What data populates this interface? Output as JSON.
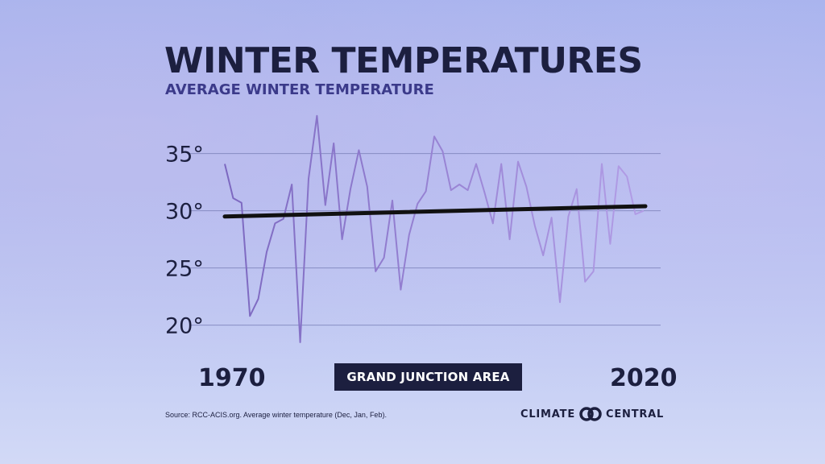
{
  "header": {
    "title": "WINTER TEMPERATURES",
    "subtitle": "AVERAGE WINTER TEMPERATURE"
  },
  "region_label": "GRAND JUNCTION AREA",
  "x_start_label": "1970",
  "x_end_label": "2020",
  "source": "Source: RCC-ACIS.org. Average winter temperature (Dec, Jan, Feb).",
  "logo": {
    "left": "CLIMATE",
    "right": "CENTRAL",
    "icon": "infinity-rings-icon"
  },
  "colors": {
    "text_dark": "#1c1f3f",
    "series_start": "#7c68c0",
    "series_end": "#b29de6",
    "trend": "#111111",
    "grid": "#7a80b8",
    "badge_bg": "#1c1f3f"
  },
  "chart_data": {
    "type": "line",
    "title": "WINTER TEMPERATURES",
    "subtitle": "AVERAGE WINTER TEMPERATURE",
    "xlabel": "",
    "ylabel": "",
    "xlim": [
      1970,
      2020
    ],
    "ylim": [
      18,
      38.5
    ],
    "yticks": [
      20,
      25,
      30,
      35
    ],
    "ytick_labels": [
      "20°",
      "25°",
      "30°",
      "35°"
    ],
    "grid": true,
    "series": [
      {
        "name": "Average winter temperature",
        "x": [
          1970,
          1971,
          1972,
          1973,
          1974,
          1975,
          1976,
          1977,
          1978,
          1979,
          1980,
          1981,
          1982,
          1983,
          1984,
          1985,
          1986,
          1987,
          1988,
          1989,
          1990,
          1991,
          1992,
          1993,
          1994,
          1995,
          1996,
          1997,
          1998,
          1999,
          2000,
          2001,
          2002,
          2003,
          2004,
          2005,
          2006,
          2007,
          2008,
          2009,
          2010,
          2011,
          2012,
          2013,
          2014,
          2015,
          2016,
          2017,
          2018,
          2019,
          2020
        ],
        "values": [
          34.1,
          31.1,
          30.7,
          20.8,
          22.3,
          26.4,
          28.9,
          29.3,
          32.3,
          18.5,
          32.8,
          38.3,
          30.5,
          35.9,
          27.5,
          31.9,
          35.3,
          32.1,
          24.7,
          25.9,
          30.9,
          23.1,
          27.9,
          30.6,
          31.7,
          36.5,
          35.2,
          31.8,
          32.3,
          31.8,
          34.1,
          31.6,
          28.9,
          34.1,
          27.5,
          34.3,
          32.1,
          28.7,
          26.1,
          29.4,
          22.0,
          29.5,
          31.9,
          23.8,
          24.7,
          34.1,
          27.1,
          33.9,
          33.0,
          29.7,
          30.0
        ]
      },
      {
        "name": "Trend",
        "x": [
          1970,
          2020
        ],
        "values": [
          29.5,
          30.4
        ]
      }
    ]
  }
}
